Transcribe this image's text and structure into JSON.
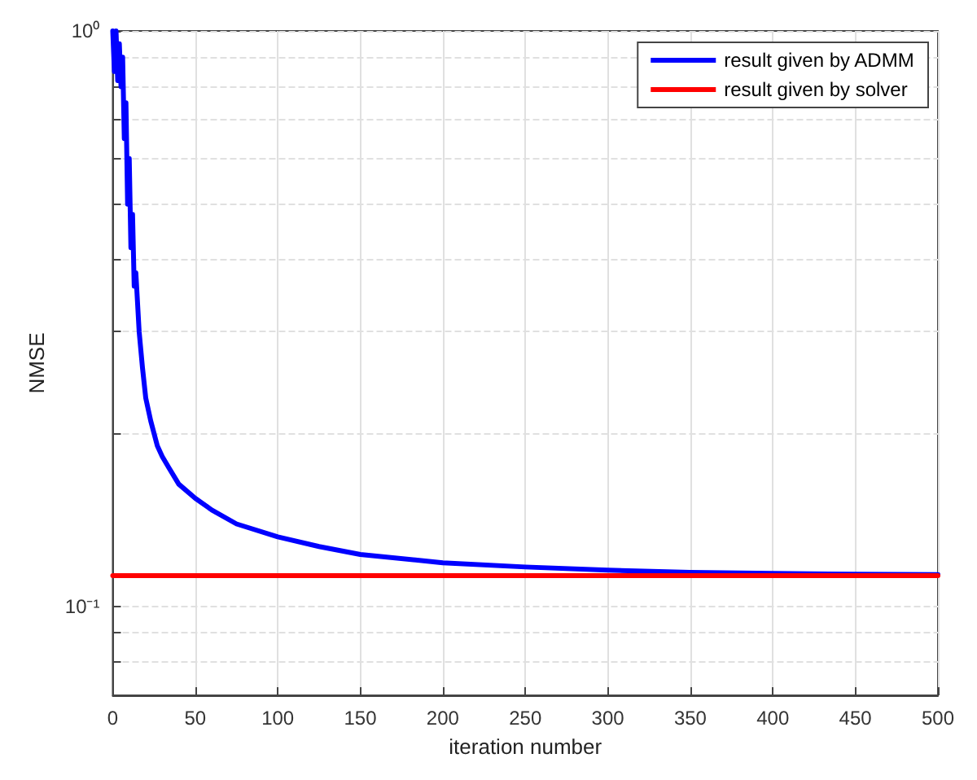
{
  "chart_data": {
    "type": "line",
    "xlabel": "iteration number",
    "ylabel": "NMSE",
    "log": "y",
    "grid": true,
    "legend": "top right",
    "line_style": "solid",
    "marker": "none",
    "xlim": [
      0,
      500
    ],
    "xticks": [
      0,
      50,
      100,
      150,
      200,
      250,
      300,
      350,
      400,
      450,
      500
    ],
    "ylim": [
      0.07,
      1
    ],
    "yticks": [
      {
        "value": 0.08,
        "label": null
      },
      {
        "value": 0.09,
        "label": null
      },
      {
        "value": 0.1,
        "label": "10⁻¹"
      },
      {
        "value": 0.2,
        "label": null
      },
      {
        "value": 0.3,
        "label": null
      },
      {
        "value": 0.4,
        "label": null
      },
      {
        "value": 0.5,
        "label": null
      },
      {
        "value": 0.6,
        "label": null
      },
      {
        "value": 0.7,
        "label": null
      },
      {
        "value": 0.8,
        "label": null
      },
      {
        "value": 0.9,
        "label": null
      },
      {
        "value": 1,
        "label": "10⁰"
      }
    ],
    "series": [
      {
        "name": "result given by ADMM",
        "color": "#0000ff",
        "x": [
          0,
          1,
          2,
          3,
          4,
          5,
          6,
          7,
          8,
          9,
          10,
          11,
          12,
          13,
          14,
          16,
          18,
          20,
          23,
          27,
          30,
          34,
          40,
          50,
          60,
          75,
          100,
          125,
          150,
          200,
          250,
          300,
          350,
          400,
          450,
          500
        ],
        "values": [
          1,
          0.85,
          1,
          0.82,
          0.95,
          0.8,
          0.9,
          0.65,
          0.75,
          0.5,
          0.6,
          0.42,
          0.48,
          0.36,
          0.38,
          0.3,
          0.26,
          0.23,
          0.21,
          0.19,
          0.182,
          0.174,
          0.163,
          0.154,
          0.147,
          0.139,
          0.132,
          0.127,
          0.123,
          0.119,
          0.117,
          0.1155,
          0.1145,
          0.114,
          0.1137,
          0.1135
        ]
      },
      {
        "name": "result given by solver",
        "color": "#ff0000",
        "x": [
          0,
          500
        ],
        "values": [
          0.113,
          0.113
        ]
      }
    ]
  }
}
